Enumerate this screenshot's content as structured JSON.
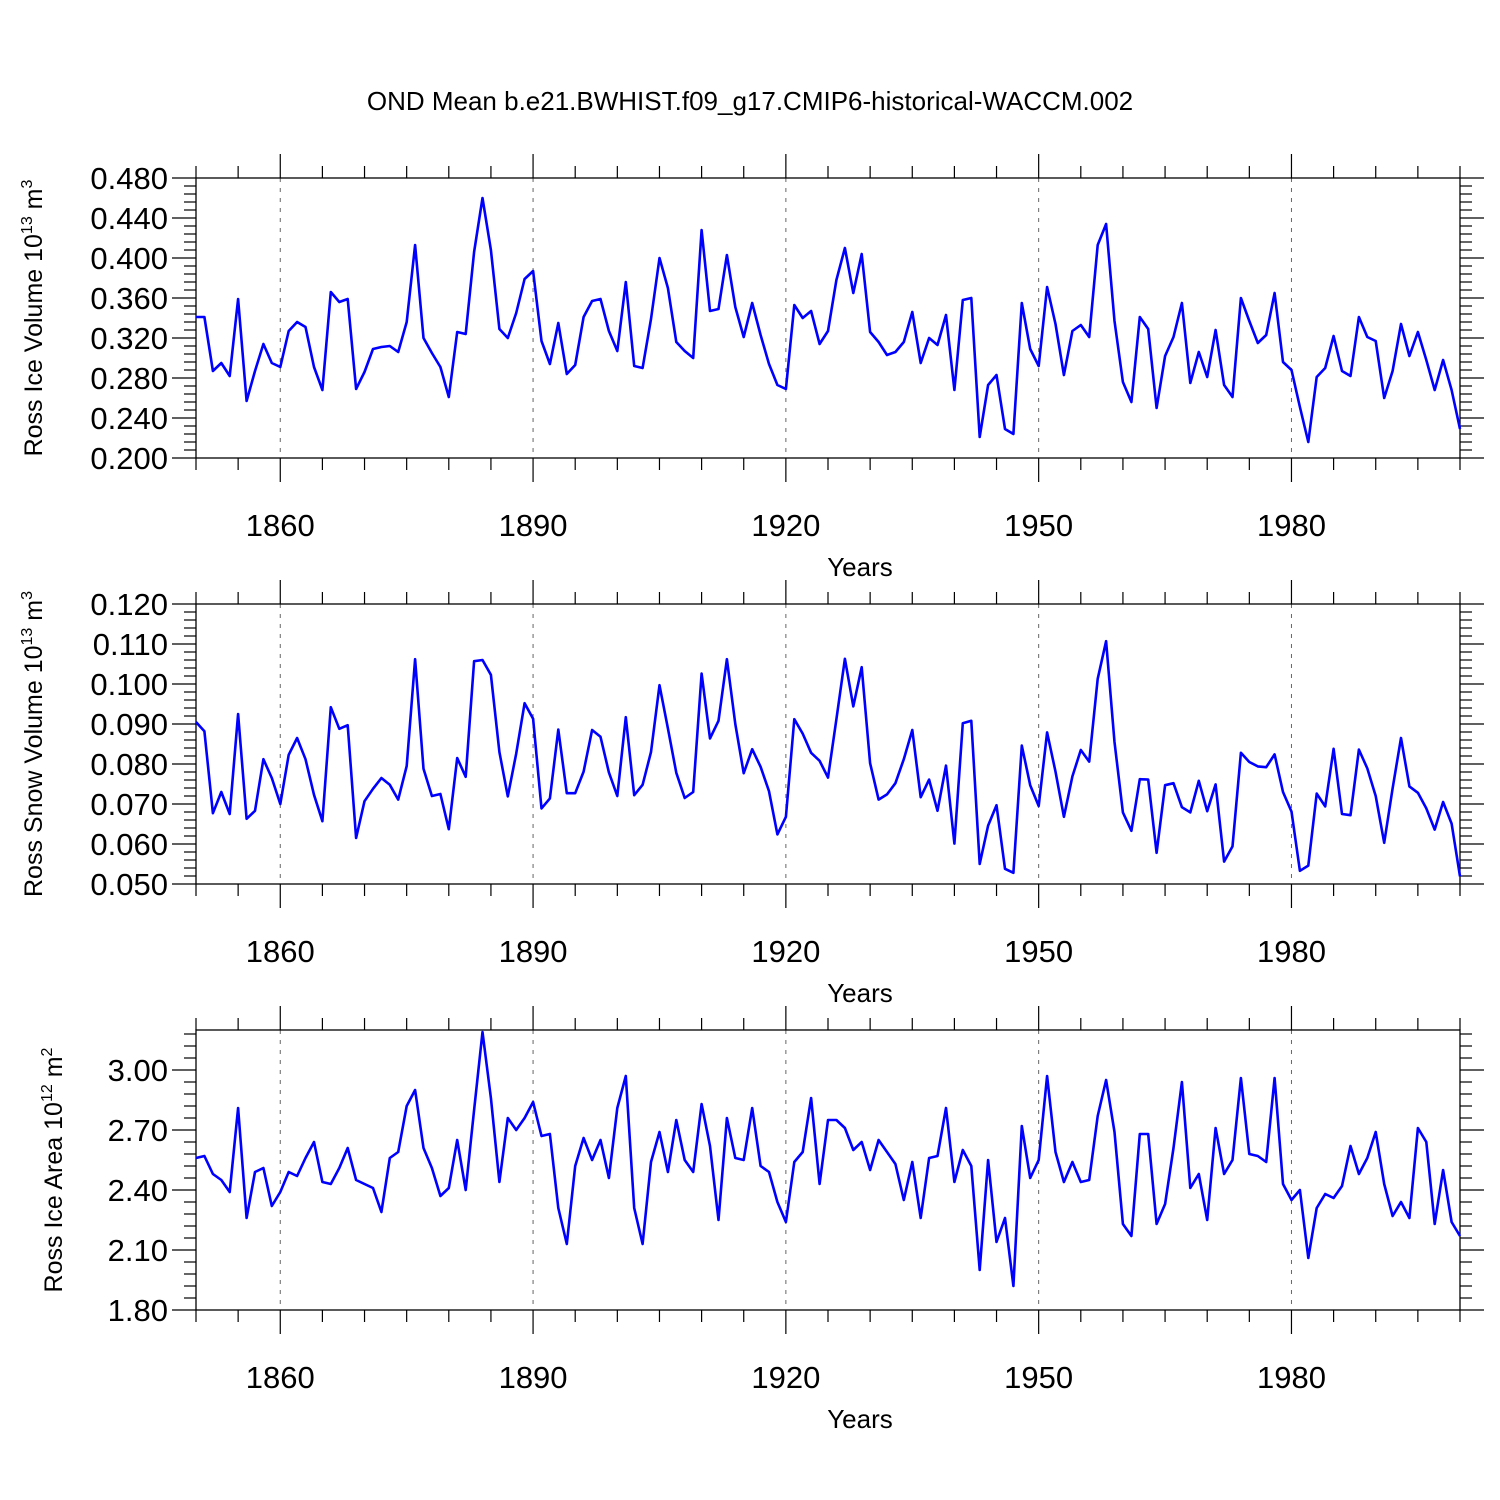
{
  "title": "OND Mean b.e21.BWHIST.f09_g17.CMIP6-historical-WACCM.002",
  "colors": {
    "line": "#0000ff",
    "axis": "#000000",
    "grid": "#666666"
  },
  "chart_data": [
    {
      "type": "line",
      "title": "OND Mean b.e21.BWHIST.f09_g17.CMIP6-historical-WACCM.002",
      "ylabel_main": "Ross Ice Volume 10",
      "ylabel_exp": "13",
      "ylabel_unit": "m",
      "ylabel_unit_exp": "3",
      "xlabel": "Years",
      "xlim": [
        1850,
        2000
      ],
      "ylim": [
        0.2,
        0.48
      ],
      "ytick_values": [
        0.2,
        0.24,
        0.28,
        0.32,
        0.36,
        0.4,
        0.44,
        0.48
      ],
      "ytick_labels": [
        "0.200",
        "0.240",
        "0.280",
        "0.320",
        "0.360",
        "0.400",
        "0.440",
        "0.480"
      ],
      "xtick_values": [
        1860,
        1890,
        1920,
        1950,
        1980
      ],
      "xtick_labels": [
        "1860",
        "1890",
        "1920",
        "1950",
        "1980"
      ],
      "x_start": 1850,
      "values": [
        0.341,
        0.341,
        0.287,
        0.295,
        0.282,
        0.359,
        0.257,
        0.287,
        0.314,
        0.295,
        0.291,
        0.327,
        0.336,
        0.331,
        0.291,
        0.268,
        0.366,
        0.356,
        0.359,
        0.269,
        0.286,
        0.309,
        0.311,
        0.312,
        0.306,
        0.336,
        0.413,
        0.32,
        0.305,
        0.291,
        0.261,
        0.326,
        0.324,
        0.406,
        0.46,
        0.408,
        0.329,
        0.32,
        0.345,
        0.379,
        0.387,
        0.317,
        0.294,
        0.335,
        0.284,
        0.293,
        0.341,
        0.357,
        0.359,
        0.327,
        0.307,
        0.376,
        0.292,
        0.29,
        0.339,
        0.4,
        0.37,
        0.316,
        0.307,
        0.3,
        0.428,
        0.347,
        0.349,
        0.403,
        0.351,
        0.321,
        0.355,
        0.323,
        0.294,
        0.273,
        0.269,
        0.353,
        0.34,
        0.347,
        0.314,
        0.327,
        0.378,
        0.41,
        0.365,
        0.404,
        0.326,
        0.316,
        0.303,
        0.306,
        0.316,
        0.346,
        0.295,
        0.32,
        0.313,
        0.343,
        0.268,
        0.358,
        0.36,
        0.221,
        0.273,
        0.283,
        0.229,
        0.224,
        0.355,
        0.309,
        0.292,
        0.371,
        0.334,
        0.283,
        0.327,
        0.333,
        0.321,
        0.413,
        0.434,
        0.337,
        0.276,
        0.256,
        0.341,
        0.329,
        0.25,
        0.302,
        0.321,
        0.355,
        0.275,
        0.306,
        0.281,
        0.328,
        0.273,
        0.261,
        0.36,
        0.337,
        0.315,
        0.323,
        0.365,
        0.296,
        0.288,
        0.251,
        0.216,
        0.281,
        0.29,
        0.322,
        0.287,
        0.282,
        0.341,
        0.321,
        0.317,
        0.26,
        0.287,
        0.334,
        0.302,
        0.326,
        0.298,
        0.268,
        0.298,
        0.268,
        0.229
      ]
    },
    {
      "type": "line",
      "ylabel_main": "Ross Snow Volume 10",
      "ylabel_exp": "13",
      "ylabel_unit": "m",
      "ylabel_unit_exp": "3",
      "xlabel": "Years",
      "xlim": [
        1850,
        2000
      ],
      "ylim": [
        0.05,
        0.12
      ],
      "ytick_values": [
        0.05,
        0.06,
        0.07,
        0.08,
        0.09,
        0.1,
        0.11,
        0.12
      ],
      "ytick_labels": [
        "0.050",
        "0.060",
        "0.070",
        "0.080",
        "0.090",
        "0.100",
        "0.110",
        "0.120"
      ],
      "xtick_values": [
        1860,
        1890,
        1920,
        1950,
        1980
      ],
      "xtick_labels": [
        "1860",
        "1890",
        "1920",
        "1950",
        "1980"
      ],
      "x_start": 1850,
      "values": [
        0.0905,
        0.0882,
        0.0677,
        0.073,
        0.0675,
        0.0925,
        0.0663,
        0.0683,
        0.0812,
        0.0765,
        0.07,
        0.0823,
        0.0865,
        0.0812,
        0.0723,
        0.0657,
        0.0942,
        0.0888,
        0.0897,
        0.0615,
        0.0707,
        0.0738,
        0.0765,
        0.0748,
        0.0711,
        0.0795,
        0.1062,
        0.0788,
        0.072,
        0.0725,
        0.0637,
        0.0815,
        0.0768,
        0.1057,
        0.106,
        0.1023,
        0.083,
        0.0719,
        0.0826,
        0.0952,
        0.0913,
        0.0689,
        0.0714,
        0.0886,
        0.0727,
        0.0727,
        0.0781,
        0.0885,
        0.0868,
        0.0779,
        0.072,
        0.0917,
        0.0722,
        0.0748,
        0.083,
        0.0997,
        0.0889,
        0.0778,
        0.0715,
        0.073,
        0.1026,
        0.0864,
        0.0908,
        0.1062,
        0.09,
        0.0777,
        0.0837,
        0.0793,
        0.0732,
        0.0624,
        0.0668,
        0.0912,
        0.0876,
        0.0828,
        0.0808,
        0.0766,
        0.0912,
        0.1063,
        0.0944,
        0.1042,
        0.0802,
        0.0711,
        0.0724,
        0.0752,
        0.0812,
        0.0885,
        0.0717,
        0.0761,
        0.0683,
        0.0796,
        0.0601,
        0.0902,
        0.0908,
        0.055,
        0.0646,
        0.0697,
        0.0538,
        0.0528,
        0.0846,
        0.0747,
        0.0695,
        0.0879,
        0.0781,
        0.0668,
        0.0769,
        0.0835,
        0.0806,
        0.1013,
        0.1107,
        0.0855,
        0.0679,
        0.0633,
        0.0762,
        0.0761,
        0.0578,
        0.0747,
        0.0752,
        0.0692,
        0.0679,
        0.0758,
        0.0682,
        0.0749,
        0.0556,
        0.0594,
        0.0828,
        0.0805,
        0.0794,
        0.0792,
        0.0824,
        0.073,
        0.0681,
        0.0533,
        0.0546,
        0.0726,
        0.0694,
        0.0838,
        0.0675,
        0.0672,
        0.0836,
        0.0789,
        0.072,
        0.0603,
        0.0739,
        0.0865,
        0.0744,
        0.0728,
        0.0689,
        0.0636,
        0.0705,
        0.0651,
        0.0519
      ]
    },
    {
      "type": "line",
      "ylabel_main": "Ross Ice Area 10",
      "ylabel_exp": "12",
      "ylabel_unit": "m",
      "ylabel_unit_exp": "2",
      "xlabel": "Years",
      "xlim": [
        1850,
        2000
      ],
      "ylim": [
        1.8,
        3.2
      ],
      "ytick_values": [
        1.8,
        2.1,
        2.4,
        2.7,
        3.0
      ],
      "ytick_labels": [
        "1.80",
        "2.10",
        "2.40",
        "2.70",
        "3.00"
      ],
      "xtick_values": [
        1860,
        1890,
        1920,
        1950,
        1980
      ],
      "xtick_labels": [
        "1860",
        "1890",
        "1920",
        "1950",
        "1980"
      ],
      "x_start": 1850,
      "values": [
        2.56,
        2.57,
        2.48,
        2.45,
        2.39,
        2.81,
        2.26,
        2.49,
        2.51,
        2.32,
        2.39,
        2.49,
        2.47,
        2.56,
        2.64,
        2.44,
        2.43,
        2.51,
        2.61,
        2.45,
        2.43,
        2.41,
        2.29,
        2.56,
        2.59,
        2.82,
        2.9,
        2.61,
        2.51,
        2.37,
        2.41,
        2.65,
        2.4,
        2.8,
        3.19,
        2.86,
        2.44,
        2.76,
        2.7,
        2.76,
        2.84,
        2.67,
        2.68,
        2.31,
        2.13,
        2.52,
        2.66,
        2.55,
        2.65,
        2.46,
        2.81,
        2.97,
        2.31,
        2.13,
        2.54,
        2.69,
        2.49,
        2.75,
        2.55,
        2.49,
        2.83,
        2.62,
        2.25,
        2.76,
        2.56,
        2.55,
        2.81,
        2.52,
        2.49,
        2.34,
        2.24,
        2.54,
        2.59,
        2.86,
        2.43,
        2.75,
        2.75,
        2.71,
        2.6,
        2.64,
        2.5,
        2.65,
        2.59,
        2.53,
        2.35,
        2.54,
        2.26,
        2.56,
        2.57,
        2.81,
        2.44,
        2.6,
        2.52,
        2.0,
        2.55,
        2.14,
        2.26,
        1.92,
        2.72,
        2.46,
        2.55,
        2.97,
        2.59,
        2.44,
        2.54,
        2.44,
        2.45,
        2.77,
        2.95,
        2.69,
        2.23,
        2.17,
        2.68,
        2.68,
        2.23,
        2.33,
        2.61,
        2.94,
        2.41,
        2.48,
        2.25,
        2.71,
        2.48,
        2.55,
        2.96,
        2.58,
        2.57,
        2.54,
        2.96,
        2.43,
        2.35,
        2.4,
        2.06,
        2.31,
        2.38,
        2.36,
        2.42,
        2.62,
        2.48,
        2.56,
        2.69,
        2.43,
        2.27,
        2.34,
        2.26,
        2.71,
        2.64,
        2.23,
        2.5,
        2.24,
        2.17
      ]
    }
  ]
}
